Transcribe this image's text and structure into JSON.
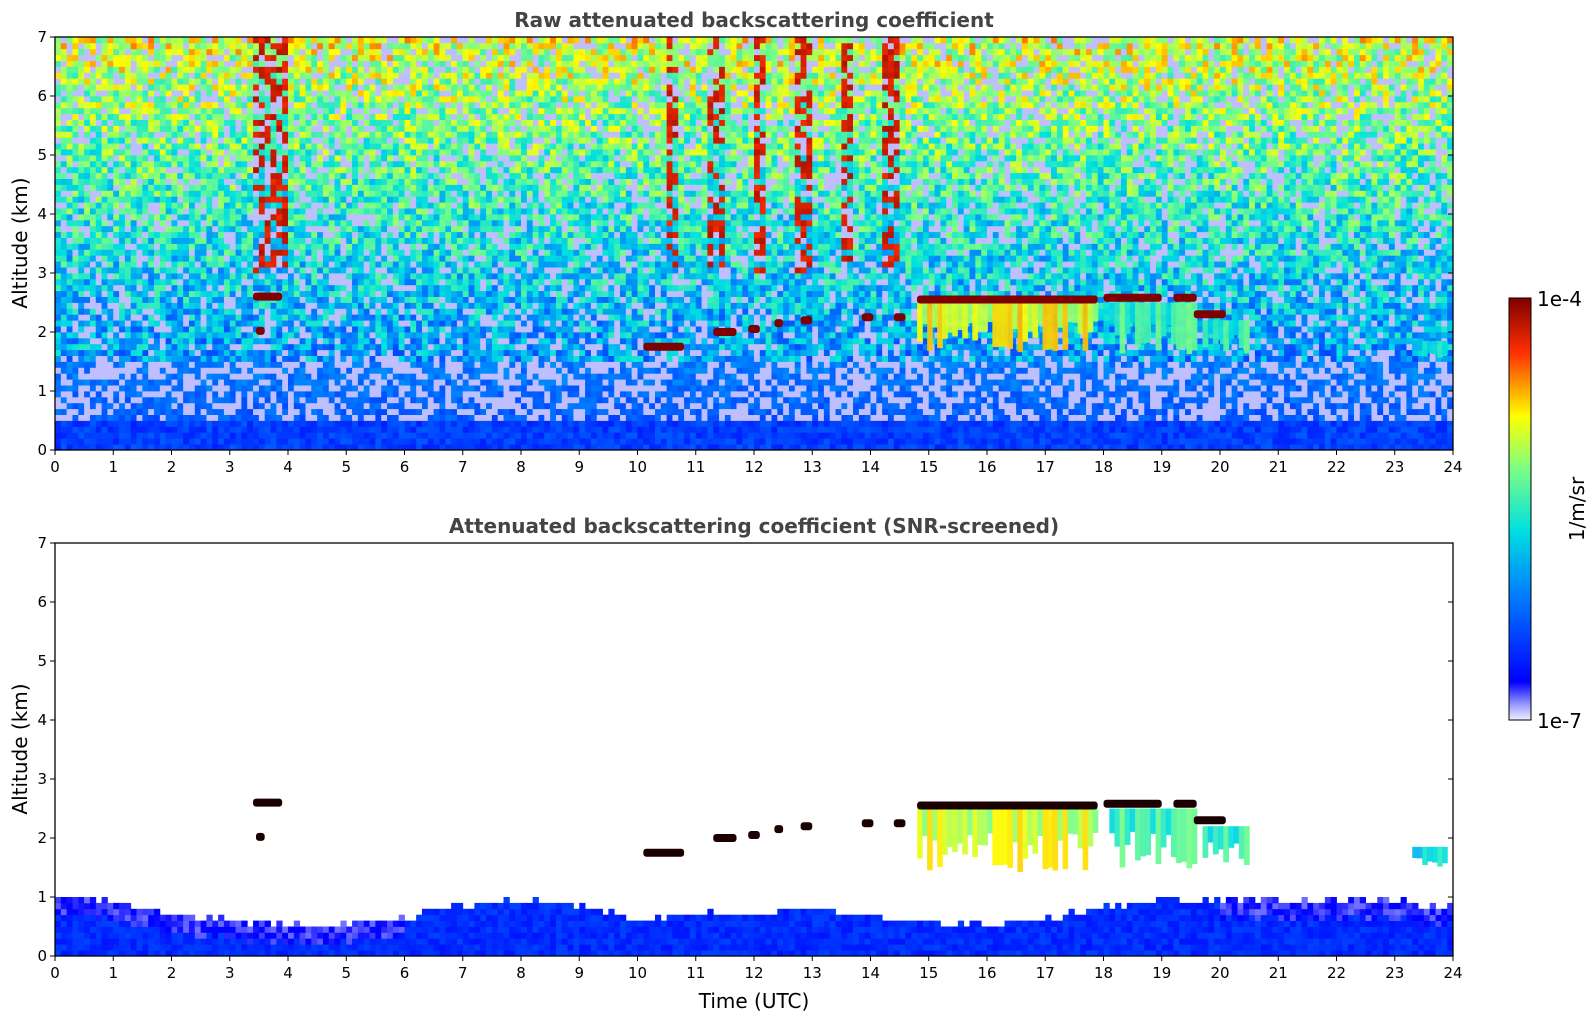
{
  "chart_data": [
    {
      "type": "heatmap",
      "title": "Raw attenuated backscattering coefficient",
      "xlabel": "",
      "ylabel": "Altitude (km)",
      "xlim": [
        0,
        24
      ],
      "ylim": [
        0,
        7
      ],
      "x_ticks": [
        "0",
        "1",
        "2",
        "3",
        "4",
        "5",
        "6",
        "7",
        "8",
        "9",
        "10",
        "11",
        "12",
        "13",
        "14",
        "15",
        "16",
        "17",
        "18",
        "19",
        "20",
        "21",
        "22",
        "23",
        "24"
      ],
      "y_ticks": [
        "0",
        "1",
        "2",
        "3",
        "4",
        "5",
        "6",
        "7"
      ],
      "features": [
        {
          "kind": "surface-layer",
          "x_range": [
            0,
            24
          ],
          "alt_top_km": 0.5,
          "value": 0.05
        },
        {
          "kind": "cloud",
          "x_range": [
            3.4,
            3.9
          ],
          "alt_km": 2.6,
          "value": 1.0
        },
        {
          "kind": "cloud",
          "x_range": [
            3.45,
            3.6
          ],
          "alt_km": 2.02,
          "value": 1.0
        },
        {
          "kind": "cloud",
          "x_range": [
            10.1,
            10.8
          ],
          "alt_km": 1.75,
          "value": 1.0
        },
        {
          "kind": "cloud",
          "x_range": [
            11.3,
            11.7
          ],
          "alt_km": 2.0,
          "value": 1.0
        },
        {
          "kind": "cloud",
          "x_range": [
            11.9,
            12.1
          ],
          "alt_km": 2.05,
          "value": 1.0
        },
        {
          "kind": "cloud",
          "x_range": [
            12.35,
            12.5
          ],
          "alt_km": 2.15,
          "value": 1.0
        },
        {
          "kind": "cloud",
          "x_range": [
            12.8,
            13.0
          ],
          "alt_km": 2.2,
          "value": 1.0
        },
        {
          "kind": "cloud",
          "x_range": [
            13.85,
            14.05
          ],
          "alt_km": 2.25,
          "value": 1.0
        },
        {
          "kind": "cloud",
          "x_range": [
            14.4,
            14.6
          ],
          "alt_km": 2.25,
          "value": 1.0
        },
        {
          "kind": "cloud",
          "x_range": [
            14.8,
            17.9
          ],
          "alt_km": 2.55,
          "value": 1.0
        },
        {
          "kind": "cloud",
          "x_range": [
            18.0,
            19.0
          ],
          "alt_km": 2.58,
          "value": 1.0
        },
        {
          "kind": "cloud",
          "x_range": [
            19.2,
            19.6
          ],
          "alt_km": 2.58,
          "value": 1.0
        },
        {
          "kind": "cloud",
          "x_range": [
            19.55,
            20.1
          ],
          "alt_km": 2.3,
          "value": 1.0
        },
        {
          "kind": "virga",
          "x_range": [
            14.8,
            17.9
          ],
          "alt_range_km": [
            1.6,
            2.5
          ],
          "value": 0.7
        },
        {
          "kind": "virga",
          "x_range": [
            18.1,
            19.6
          ],
          "alt_range_km": [
            1.55,
            2.5
          ],
          "value": 0.52
        },
        {
          "kind": "virga",
          "x_range": [
            19.7,
            20.5
          ],
          "alt_range_km": [
            1.6,
            2.2
          ],
          "value": 0.5
        },
        {
          "kind": "aerosol",
          "x_range": [
            23.3,
            23.9
          ],
          "alt_range_km": [
            1.55,
            1.85
          ],
          "value": 0.42
        }
      ]
    },
    {
      "type": "heatmap",
      "title": "Attenuated backscattering coefficient (SNR-screened)",
      "xlabel": "Time (UTC)",
      "ylabel": "Altitude (km)",
      "xlim": [
        0,
        24
      ],
      "ylim": [
        0,
        7
      ],
      "x_ticks": [
        "0",
        "1",
        "2",
        "3",
        "4",
        "5",
        "6",
        "7",
        "8",
        "9",
        "10",
        "11",
        "12",
        "13",
        "14",
        "15",
        "16",
        "17",
        "18",
        "19",
        "20",
        "21",
        "22",
        "23",
        "24"
      ],
      "y_ticks": [
        "0",
        "1",
        "2",
        "3",
        "4",
        "5",
        "6",
        "7"
      ],
      "features": [
        {
          "kind": "boundary-layer",
          "x_range": [
            0,
            24
          ],
          "alt_top_km": [
            1.0,
            0.95,
            0.75,
            0.6,
            0.55,
            0.55,
            0.65,
            0.85,
            0.95,
            0.85,
            0.6,
            0.75,
            0.7,
            0.8,
            0.65,
            0.55,
            0.55,
            0.6,
            0.85,
            0.95,
            0.95,
            0.95,
            0.95,
            0.9,
            0.85
          ],
          "value": 0.1
        },
        {
          "kind": "cloud",
          "x_range": [
            3.4,
            3.9
          ],
          "alt_km": 2.6,
          "value": 1.0
        },
        {
          "kind": "cloud",
          "x_range": [
            3.45,
            3.6
          ],
          "alt_km": 2.02,
          "value": 1.0
        },
        {
          "kind": "cloud",
          "x_range": [
            10.1,
            10.8
          ],
          "alt_km": 1.75,
          "value": 1.0
        },
        {
          "kind": "cloud",
          "x_range": [
            11.3,
            11.7
          ],
          "alt_km": 2.0,
          "value": 1.0
        },
        {
          "kind": "cloud",
          "x_range": [
            11.9,
            12.1
          ],
          "alt_km": 2.05,
          "value": 1.0
        },
        {
          "kind": "cloud",
          "x_range": [
            12.35,
            12.5
          ],
          "alt_km": 2.15,
          "value": 1.0
        },
        {
          "kind": "cloud",
          "x_range": [
            12.8,
            13.0
          ],
          "alt_km": 2.2,
          "value": 1.0
        },
        {
          "kind": "cloud",
          "x_range": [
            13.85,
            14.05
          ],
          "alt_km": 2.25,
          "value": 1.0
        },
        {
          "kind": "cloud",
          "x_range": [
            14.4,
            14.6
          ],
          "alt_km": 2.25,
          "value": 1.0
        },
        {
          "kind": "cloud",
          "x_range": [
            14.8,
            17.9
          ],
          "alt_km": 2.55,
          "value": 1.0
        },
        {
          "kind": "cloud",
          "x_range": [
            18.0,
            19.0
          ],
          "alt_km": 2.58,
          "value": 1.0
        },
        {
          "kind": "cloud",
          "x_range": [
            19.2,
            19.6
          ],
          "alt_km": 2.58,
          "value": 1.0
        },
        {
          "kind": "cloud",
          "x_range": [
            19.55,
            20.1
          ],
          "alt_km": 2.3,
          "value": 1.0
        },
        {
          "kind": "virga",
          "x_range": [
            14.8,
            17.9
          ],
          "alt_range_km": [
            1.35,
            2.5
          ],
          "value": 0.68
        },
        {
          "kind": "virga",
          "x_range": [
            18.1,
            19.6
          ],
          "alt_range_km": [
            1.4,
            2.5
          ],
          "value": 0.52
        },
        {
          "kind": "virga",
          "x_range": [
            19.7,
            20.5
          ],
          "alt_range_km": [
            1.5,
            2.2
          ],
          "value": 0.5
        },
        {
          "kind": "aerosol",
          "x_range": [
            23.3,
            23.9
          ],
          "alt_range_km": [
            1.5,
            1.85
          ],
          "value": 0.42
        }
      ]
    }
  ],
  "colorbar": {
    "label": "1/m/sr",
    "min_label": "1e-7",
    "max_label": "1e-4",
    "colormap": "jet",
    "scale": "log"
  },
  "colors": {
    "title": "#444444",
    "axis": "#000000",
    "cloud_top": "#7f0000",
    "cloud_top_screened": "#1a0000"
  }
}
